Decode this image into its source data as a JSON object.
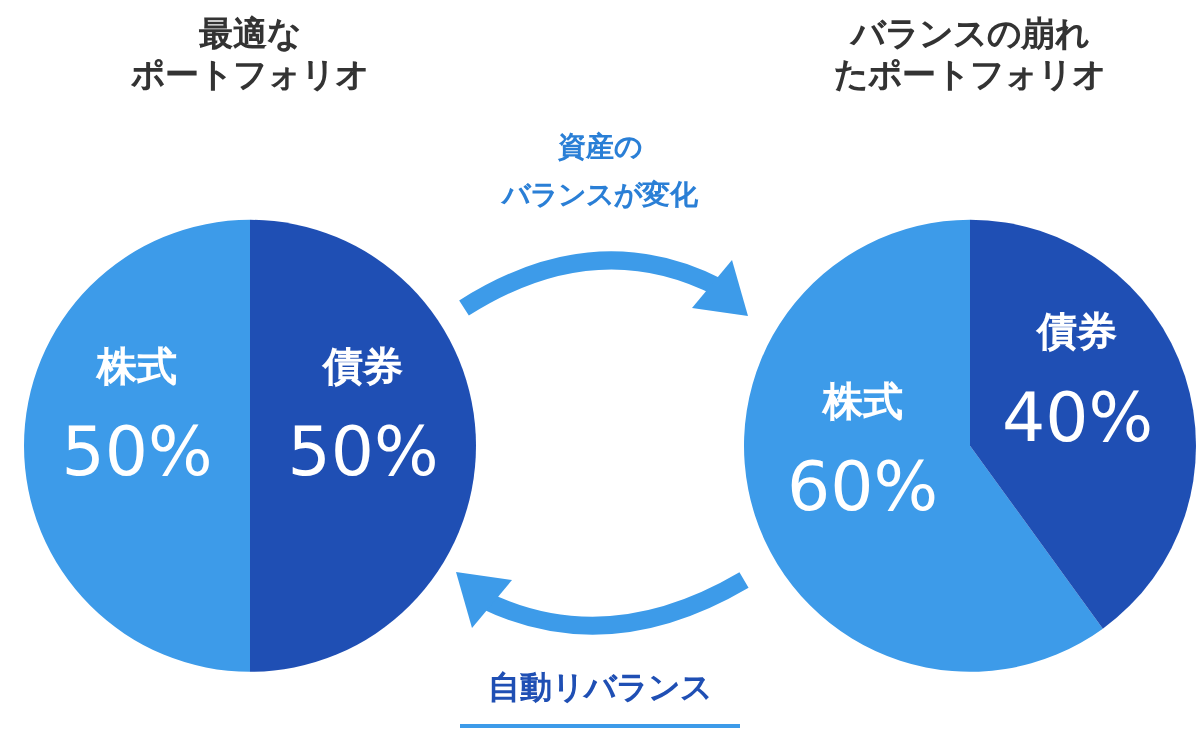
{
  "chart_data": [
    {
      "type": "pie",
      "title": "最適なポートフォリオ",
      "categories": [
        "株式",
        "債券"
      ],
      "values": [
        50,
        50
      ],
      "colors": [
        "#3d9be9",
        "#1f4fb4"
      ],
      "value_labels": [
        "50%",
        "50%"
      ],
      "legend": false
    },
    {
      "type": "other",
      "annotations": [
        "資産のバランスが変化",
        "自動リバランス"
      ]
    },
    {
      "type": "pie",
      "title": "バランスの崩れたポートフォリオ",
      "categories": [
        "株式",
        "債券"
      ],
      "values": [
        60,
        40
      ],
      "colors": [
        "#3d9be9",
        "#1f4fb4"
      ],
      "value_labels": [
        "60%",
        "40%"
      ],
      "legend": false
    }
  ]
}
